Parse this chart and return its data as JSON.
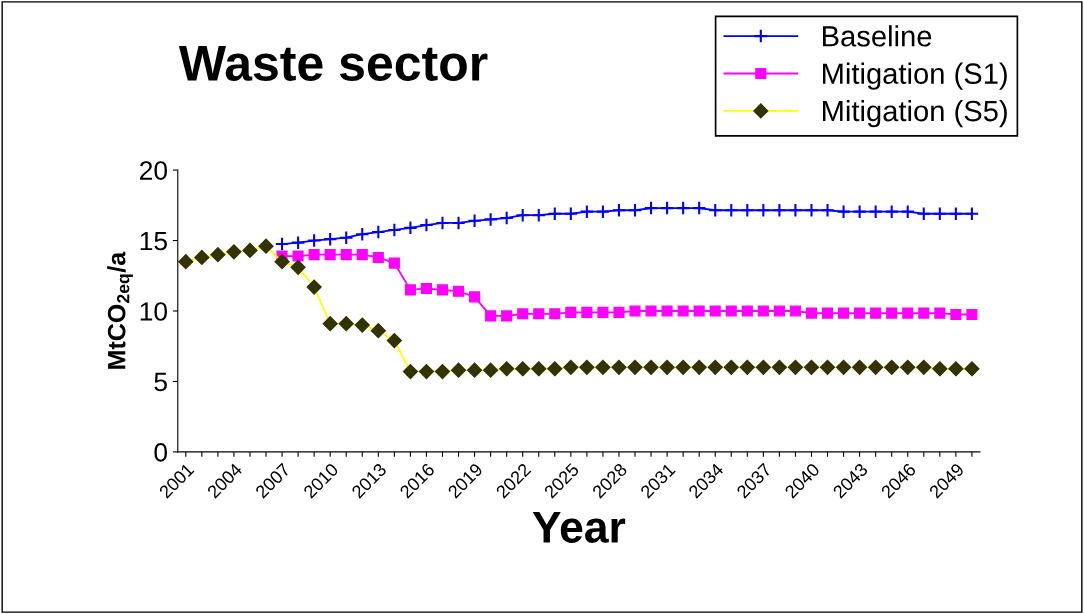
{
  "chart_data": {
    "type": "line",
    "title": "Waste sector",
    "xlabel": "Year",
    "ylabel": "MtCO$_{2eq}$/a",
    "categories": [
      "2001",
      null,
      null,
      "2004",
      null,
      null,
      "2007",
      null,
      null,
      "2010",
      null,
      null,
      "2013",
      null,
      null,
      "2016",
      null,
      null,
      "2019",
      null,
      null,
      "2022",
      null,
      null,
      "2025",
      null,
      null,
      "2028",
      null,
      null,
      "2031",
      null,
      null,
      "2034",
      null,
      null,
      "2037",
      null,
      null,
      "2040",
      null,
      null,
      "2043",
      null,
      null,
      "2046",
      null,
      null,
      "2049",
      null
    ],
    "ylim": [
      0,
      20
    ],
    "yticks": [
      0,
      5,
      10,
      15,
      20
    ],
    "grid": false,
    "legend": "top right",
    "series": [
      {
        "name": "Baseline",
        "color": "#0000ff",
        "marker": "cross",
        "values": [
          null,
          null,
          null,
          null,
          null,
          null,
          14.75,
          14.85,
          15.0,
          15.1,
          15.2,
          15.45,
          15.6,
          15.75,
          15.9,
          16.1,
          16.25,
          16.25,
          16.4,
          16.5,
          16.6,
          16.8,
          16.8,
          16.9,
          16.9,
          17.05,
          17.05,
          17.15,
          17.15,
          17.3,
          17.3,
          17.3,
          17.3,
          17.15,
          17.15,
          17.15,
          17.15,
          17.15,
          17.15,
          17.15,
          17.15,
          17.05,
          17.05,
          17.05,
          17.05,
          17.05,
          16.9,
          16.9,
          16.9,
          16.9
        ]
      },
      {
        "name": "Mitigation (S1)",
        "color": "#ff00ff",
        "marker": "square",
        "values": [
          null,
          null,
          null,
          null,
          null,
          null,
          13.9,
          13.9,
          14.0,
          14.0,
          14.0,
          14.0,
          13.8,
          13.4,
          11.5,
          11.6,
          11.5,
          11.4,
          11.0,
          9.65,
          9.65,
          9.8,
          9.8,
          9.8,
          9.9,
          9.9,
          9.9,
          9.9,
          10.0,
          10.0,
          10.0,
          10.0,
          10.0,
          10.0,
          10.0,
          10.0,
          10.0,
          10.0,
          10.0,
          9.85,
          9.85,
          9.85,
          9.85,
          9.85,
          9.85,
          9.85,
          9.85,
          9.85,
          9.75,
          9.75
        ]
      },
      {
        "name": "Mitigation (S5)",
        "color": "#ffff00",
        "colors": [
          "#333300",
          "#333300",
          "#333300",
          "#333300",
          "#333300",
          "#333300",
          "#333300",
          "#333300",
          "#333300",
          "#333300",
          "#333300",
          "#333300",
          "#333300",
          "#333300",
          "#333300",
          "#333300",
          "#333300",
          "#333300",
          "#333300",
          "#333300",
          "#333300",
          "#333300",
          "#333300",
          "#333300",
          "#333300",
          "#333300",
          "#333300",
          "#333300",
          "#333300",
          "#333300",
          "#333300",
          "#333300",
          "#333300",
          "#333300",
          "#333300",
          "#333300",
          "#333300",
          "#333300",
          "#333300",
          "#333300",
          "#333300",
          "#333300",
          "#333300",
          "#333300",
          "#333300",
          "#333300",
          "#333300",
          "#333300",
          "#333300",
          "#333300"
        ],
        "marker": "diamond",
        "values": [
          13.5,
          13.8,
          14.0,
          14.2,
          14.3,
          14.6,
          13.5,
          13.1,
          11.7,
          9.1,
          9.1,
          9.0,
          8.6,
          7.9,
          5.7,
          5.7,
          5.7,
          5.8,
          5.8,
          5.8,
          5.9,
          5.9,
          5.9,
          5.9,
          6.0,
          6.0,
          6.0,
          6.0,
          6.0,
          6.0,
          6.0,
          6.0,
          6.0,
          6.0,
          6.0,
          6.0,
          6.0,
          6.0,
          6.0,
          6.0,
          6.0,
          6.0,
          6.0,
          6.0,
          6.0,
          6.0,
          6.0,
          5.9,
          5.9,
          5.9
        ]
      }
    ]
  }
}
